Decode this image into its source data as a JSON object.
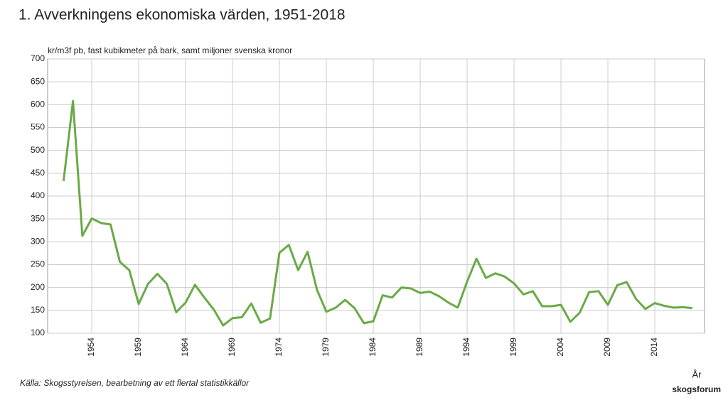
{
  "chart_data": {
    "type": "line",
    "title": "1. Avverkningens ekonomiska värden, 1951-2018",
    "y_label": "kr/m3f pb, fast kubikmeter på bark, samt miljoner svenska kronor",
    "x_label": "År",
    "source": "Källa: Skogsstyrelsen, bearbetning av ett flertal statistikkällor",
    "watermark": "skogsforum",
    "x": [
      1951,
      1952,
      1953,
      1954,
      1955,
      1956,
      1957,
      1958,
      1959,
      1960,
      1961,
      1962,
      1963,
      1964,
      1965,
      1966,
      1967,
      1968,
      1969,
      1970,
      1971,
      1972,
      1973,
      1974,
      1975,
      1976,
      1977,
      1978,
      1979,
      1980,
      1981,
      1982,
      1983,
      1984,
      1985,
      1986,
      1987,
      1988,
      1989,
      1990,
      1991,
      1992,
      1993,
      1994,
      1995,
      1996,
      1997,
      1998,
      1999,
      2000,
      2001,
      2002,
      2003,
      2004,
      2005,
      2006,
      2007,
      2008,
      2009,
      2010,
      2011,
      2012,
      2013,
      2014,
      2015,
      2016,
      2017,
      2018
    ],
    "series": [
      {
        "color": "#6aaa46",
        "values": [
          433,
          608,
          313,
          351,
          341,
          338,
          256,
          238,
          164,
          208,
          230,
          208,
          146,
          167,
          206,
          178,
          152,
          117,
          133,
          135,
          165,
          123,
          132,
          276,
          293,
          238,
          278,
          195,
          147,
          156,
          173,
          155,
          122,
          126,
          183,
          178,
          200,
          198,
          188,
          191,
          181,
          167,
          156,
          213,
          263,
          221,
          231,
          224,
          209,
          185,
          192,
          159,
          159,
          162,
          125,
          145,
          190,
          192,
          162,
          205,
          212,
          175,
          153,
          166,
          160,
          156,
          157,
          155
        ]
      }
    ],
    "xlim": [
      1949.3,
      2019.3
    ],
    "xticks": [
      1954,
      1959,
      1964,
      1969,
      1974,
      1979,
      1984,
      1989,
      1994,
      1999,
      2004,
      2009,
      2014
    ],
    "ylim": [
      100,
      700
    ],
    "yticks": [
      100,
      150,
      200,
      250,
      300,
      350,
      400,
      450,
      500,
      550,
      600,
      650,
      700
    ],
    "grid": true
  }
}
